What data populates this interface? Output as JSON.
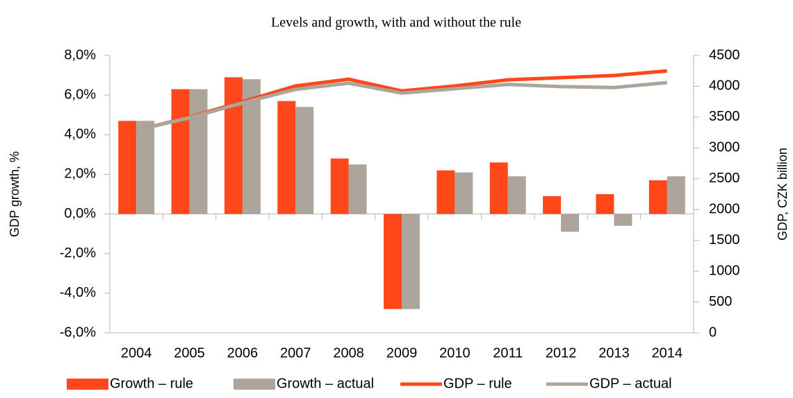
{
  "chart_data": {
    "type": "bar",
    "title": "Levels and growth, with and without the rule",
    "y_label": "GDP growth, %",
    "y2_label": "GDP, CZK billion",
    "categories": [
      "2004",
      "2005",
      "2006",
      "2007",
      "2008",
      "2009",
      "2010",
      "2011",
      "2012",
      "2013",
      "2014"
    ],
    "ylim": [
      -6,
      8
    ],
    "yticks": [
      {
        "value": -6,
        "label": "-6,0%"
      },
      {
        "value": -4,
        "label": "-4,0%"
      },
      {
        "value": -2,
        "label": "-2,0%"
      },
      {
        "value": 0,
        "label": "0,0%"
      },
      {
        "value": 2,
        "label": "2,0%"
      },
      {
        "value": 4,
        "label": "4,0%"
      },
      {
        "value": 6,
        "label": "6,0%"
      },
      {
        "value": 8,
        "label": "8,0%"
      }
    ],
    "y2lim": [
      0,
      4500
    ],
    "y2ticks": [
      0,
      500,
      1000,
      1500,
      2000,
      2500,
      3000,
      3500,
      4000,
      4500
    ],
    "grid": false,
    "legend": "bottom",
    "series": [
      {
        "name": "Growth – rule",
        "type": "bar",
        "color": "#ff4719",
        "values": [
          4.7,
          6.3,
          6.9,
          5.7,
          2.8,
          -4.8,
          2.2,
          2.6,
          0.9,
          1.0,
          1.7
        ]
      },
      {
        "name": "Growth – actual",
        "type": "bar",
        "color": "#ada59b",
        "values": [
          4.7,
          6.3,
          6.8,
          5.4,
          2.5,
          -4.8,
          2.1,
          1.9,
          -0.9,
          -0.6,
          1.9
        ]
      },
      {
        "name": "GDP – rule",
        "type": "line",
        "axis": "y2",
        "color": "#ff4719",
        "values": [
          3285,
          3500,
          3750,
          4005,
          4115,
          3925,
          4005,
          4105,
          4140,
          4175,
          4250
        ]
      },
      {
        "name": "GDP – actual",
        "type": "line",
        "axis": "y2",
        "color": "#ada59b",
        "values": [
          3285,
          3490,
          3730,
          3950,
          4050,
          3890,
          3960,
          4030,
          3995,
          3980,
          4060
        ]
      }
    ]
  }
}
